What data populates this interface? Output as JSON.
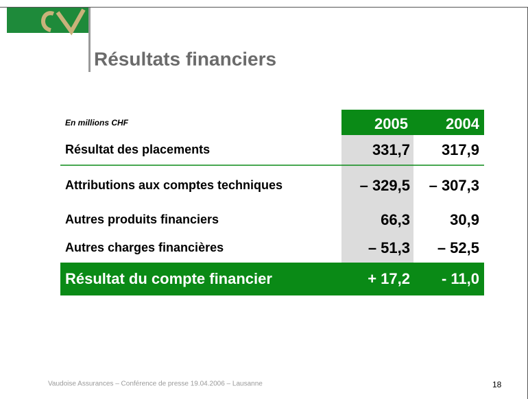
{
  "header": {
    "title": "Résultats financiers"
  },
  "table": {
    "unit": "En millions CHF",
    "columns": [
      "2005",
      "2004"
    ],
    "rows": [
      [
        "Résultat des placements",
        "331,7",
        "317,9"
      ],
      [
        "Attributions aux comptes techniques",
        "– 329,5",
        "– 307,3"
      ],
      [
        "Autres produits financiers",
        "66,3",
        "30,9"
      ],
      [
        "Autres charges financières",
        "– 51,3",
        "– 52,5"
      ]
    ],
    "total": [
      "Résultat du compte financier",
      "+ 17,2",
      "- 11,0"
    ]
  },
  "footer": {
    "text": "Vaudoise Assurances – Conférence de presse 19.04.2006 – Lausanne",
    "page": "18"
  }
}
